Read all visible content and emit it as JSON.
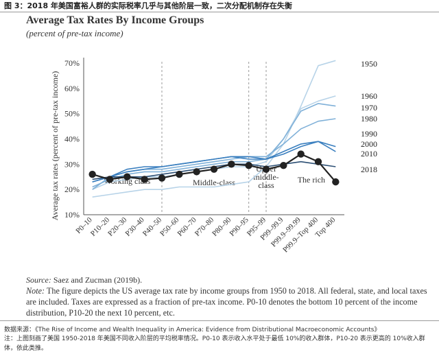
{
  "caption": "图 3：2018 年美国富裕人群的实际税率几乎与其他阶层一致，二次分配机制存在失衡",
  "colors": {
    "highlight": "#222222",
    "light": "#b7d3e8",
    "mid": "#7fb0d8",
    "dark": "#3a7fbf"
  },
  "chart_data": {
    "type": "line",
    "title": "Average Tax Rates By Income Groups",
    "subtitle": "(percent of pre-tax income)",
    "ylabel": "Average tax rates (percent of pre-tax income)",
    "ylim": [
      10,
      70
    ],
    "yticks": [
      "70%",
      "60%",
      "50%",
      "40%",
      "30%",
      "20%",
      "10%"
    ],
    "grid": false,
    "categories": [
      "P0–10",
      "P10–20",
      "P20–30",
      "P30–40",
      "P40–50",
      "P50–60",
      "P60–70",
      "P70–80",
      "P80–90",
      "P90–95",
      "P95–99",
      "P99–99.9",
      "P99.9–99.99",
      "P99.9–Top 400",
      "Top 400"
    ],
    "group_labels": [
      {
        "lines": [
          "Working class"
        ]
      },
      {
        "lines": [
          "Middle-class"
        ]
      },
      {
        "lines": [
          "Upper",
          "middle-",
          "class"
        ]
      },
      {
        "lines": [
          "The rich"
        ]
      }
    ],
    "series": [
      {
        "name": "1950",
        "values": [
          17,
          18,
          19,
          20,
          20,
          21,
          21,
          21,
          22,
          23,
          29,
          38,
          53,
          69,
          71
        ]
      },
      {
        "name": "1960",
        "values": [
          20,
          23,
          24,
          25,
          25,
          26,
          27,
          28,
          29,
          29,
          31,
          40,
          52,
          55,
          57
        ]
      },
      {
        "name": "1970",
        "values": [
          21,
          24,
          26,
          27,
          27,
          28,
          29,
          30,
          31,
          31,
          32,
          40,
          51,
          54,
          53
        ]
      },
      {
        "name": "1980",
        "values": [
          20,
          25,
          27,
          28,
          28,
          29,
          30,
          31,
          32,
          33,
          33,
          38,
          44,
          47,
          48
        ]
      },
      {
        "name": "1990",
        "values": [
          23,
          25,
          28,
          29,
          29,
          30,
          31,
          32,
          33,
          32,
          32,
          35,
          38,
          39,
          37
        ]
      },
      {
        "name": "2000",
        "values": [
          23,
          25,
          27,
          28,
          29,
          30,
          31,
          32,
          33,
          33,
          32,
          34,
          37,
          39,
          35
        ]
      },
      {
        "name": "2010",
        "values": [
          24,
          25,
          25,
          25,
          26,
          27,
          28,
          29,
          30,
          30,
          29,
          30,
          31,
          30,
          29
        ]
      },
      {
        "name": "2018",
        "values": [
          26,
          24,
          25,
          24,
          24.5,
          26,
          27,
          28,
          30,
          29.5,
          28,
          29.5,
          34,
          31,
          23
        ]
      }
    ]
  },
  "source": {
    "label": "Source:",
    "text": "Saez and Zucman (2019b)."
  },
  "note": {
    "label": "Note:",
    "text": "The figure depicts the US average tax rate by income groups from 1950 to 2018. All federal, state, and local taxes are included. Taxes are expressed as a fraction of pre-tax income. P0-10 denotes the bottom 10 percent of the income distribution, P10-20 the next 10 percent, etc."
  },
  "footer": {
    "source": "数据来源：《The Rise of Income and Wealth Inequality in America: Evidence from Distributional Macroeconomic Accounts》",
    "note": "注：上图刻画了美国 1950-2018 年美国不同收入阶层的平均税率情况。P0-10 表示收入水平处于最低 10%的收入群体，P10-20 表示更高的 10%收入群体，依此类推。"
  }
}
